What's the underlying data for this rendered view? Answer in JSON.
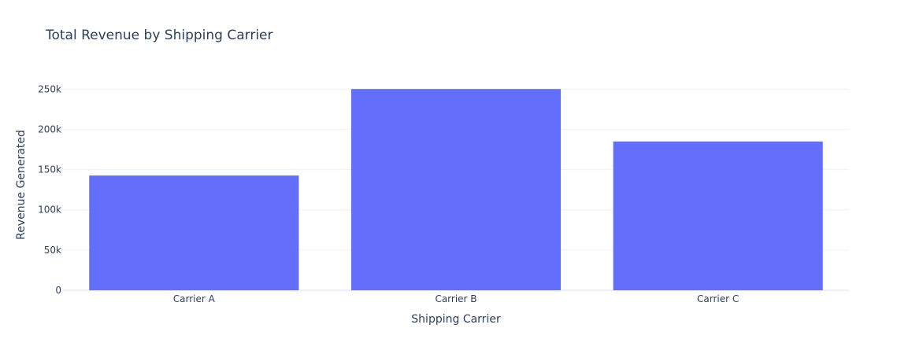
{
  "chart_data": {
    "type": "bar",
    "title": "Total Revenue by Shipping Carrier",
    "xlabel": "Shipping Carrier",
    "ylabel": "Revenue Generated",
    "categories": [
      "Carrier A",
      "Carrier B",
      "Carrier C"
    ],
    "values": [
      142600,
      250100,
      184900
    ],
    "ylim": [
      0,
      263000
    ],
    "yticks": [
      0,
      50000,
      100000,
      150000,
      200000,
      250000
    ],
    "ytick_labels": [
      "0",
      "50k",
      "100k",
      "150k",
      "200k",
      "250k"
    ],
    "grid": true,
    "colors": {
      "bar": "#636efa",
      "text": "#2a3f5f",
      "grid": "#ebf0f8",
      "background": "#ffffff"
    }
  }
}
